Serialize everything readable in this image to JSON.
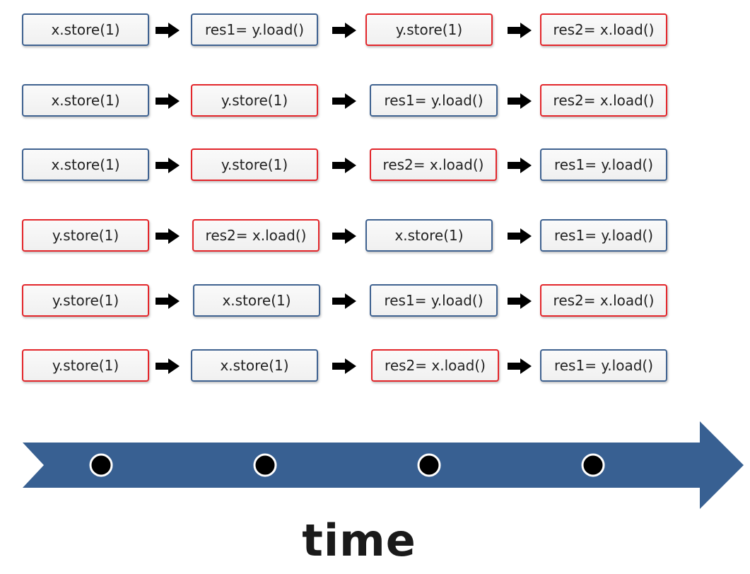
{
  "rows": [
    {
      "ops": [
        {
          "text": "x.store(1)",
          "thread": "blue"
        },
        {
          "text": "res1= y.load()",
          "thread": "blue"
        },
        {
          "text": "y.store(1)",
          "thread": "red"
        },
        {
          "text": "res2= x.load()",
          "thread": "red"
        }
      ]
    },
    {
      "ops": [
        {
          "text": "x.store(1)",
          "thread": "blue"
        },
        {
          "text": "y.store(1)",
          "thread": "red"
        },
        {
          "text": "res1= y.load()",
          "thread": "blue"
        },
        {
          "text": "res2= x.load()",
          "thread": "red"
        }
      ]
    },
    {
      "ops": [
        {
          "text": "x.store(1)",
          "thread": "blue"
        },
        {
          "text": "y.store(1)",
          "thread": "red"
        },
        {
          "text": "res2= x.load()",
          "thread": "red"
        },
        {
          "text": "res1= y.load()",
          "thread": "blue"
        }
      ]
    },
    {
      "ops": [
        {
          "text": "y.store(1)",
          "thread": "red"
        },
        {
          "text": "res2= x.load()",
          "thread": "red"
        },
        {
          "text": "x.store(1)",
          "thread": "blue"
        },
        {
          "text": "res1= y.load()",
          "thread": "blue"
        }
      ]
    },
    {
      "ops": [
        {
          "text": "y.store(1)",
          "thread": "red"
        },
        {
          "text": "x.store(1)",
          "thread": "blue"
        },
        {
          "text": "res1= y.load()",
          "thread": "blue"
        },
        {
          "text": "res2= x.load()",
          "thread": "red"
        }
      ]
    },
    {
      "ops": [
        {
          "text": "y.store(1)",
          "thread": "red"
        },
        {
          "text": "x.store(1)",
          "thread": "blue"
        },
        {
          "text": "res2= x.load()",
          "thread": "red"
        },
        {
          "text": "res1= y.load()",
          "thread": "blue"
        }
      ]
    }
  ],
  "timeline": {
    "label": "time",
    "marker_count": 4,
    "color": "#386092"
  },
  "colors": {
    "blue": "#3f6290",
    "red": "#e3262b"
  }
}
